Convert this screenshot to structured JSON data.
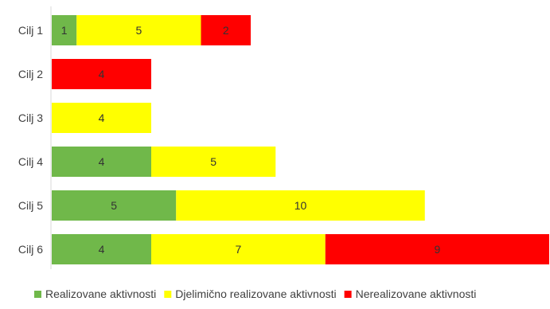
{
  "chart_data": {
    "type": "bar",
    "orientation": "horizontal",
    "stacked": true,
    "categories": [
      "Cilj 1",
      "Cilj 2",
      "Cilj 3",
      "Cilj 4",
      "Cilj 5",
      "Cilj 6"
    ],
    "series": [
      {
        "name": "Realizovane aktivnosti",
        "color": "#70b84a",
        "values": [
          1,
          0,
          0,
          4,
          5,
          4
        ]
      },
      {
        "name": "Djelimično realizovane aktivnosti",
        "color": "#ffff00",
        "values": [
          5,
          0,
          4,
          5,
          10,
          7
        ]
      },
      {
        "name": "Nerealizovane aktivnosti",
        "color": "#ff0000",
        "values": [
          2,
          4,
          0,
          0,
          0,
          9
        ]
      }
    ],
    "xlim": [
      0,
      20
    ],
    "grid": false,
    "legend": "bottom"
  }
}
